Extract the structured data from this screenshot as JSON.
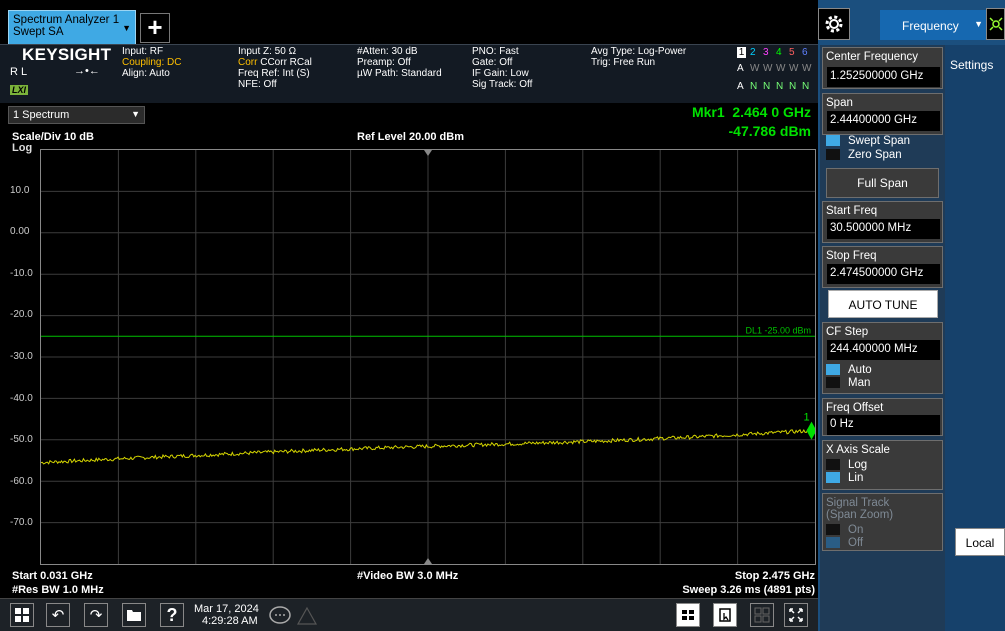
{
  "tab": {
    "title_line1": "Spectrum Analyzer 1",
    "title_line2": "Swept SA",
    "add": "+"
  },
  "info": {
    "brand": "KEYSIGHT",
    "rl": "R L",
    "lxi": "LXI",
    "col1": [
      "Input: RF",
      "Coupling: DC",
      "Align: Auto"
    ],
    "col2": [
      "Input Z: 50 Ω",
      "Corr CCorr RCal",
      "Freq Ref: Int (S)",
      "NFE: Off"
    ],
    "col3": [
      "#Atten: 30 dB",
      "Preamp: Off",
      "µW Path: Standard"
    ],
    "col4": [
      "PNO: Fast",
      "Gate: Off",
      "IF Gain: Low",
      "Sig Track: Off"
    ],
    "col5": [
      "Avg Type: Log-Power",
      "Trig: Free Run"
    ],
    "trace_nums": [
      "1",
      "2",
      "3",
      "4",
      "5",
      "6"
    ],
    "trace_types": [
      "A",
      "W",
      "W",
      "W",
      "W",
      "W"
    ],
    "trace_dets": [
      "A",
      "N",
      "N",
      "N",
      "N",
      "N"
    ],
    "trace_colors": [
      "#ffff00",
      "#00d0ff",
      "#ff40ff",
      "#00ff00",
      "#ff6060",
      "#6080ff"
    ]
  },
  "spectrum": {
    "selector": "1 Spectrum",
    "marker_freq": "Mkr1  2.464 0 GHz",
    "marker_amp": "-47.786 dBm",
    "scale_div": "Scale/Div 10 dB",
    "log": "Log",
    "ref_level": "Ref Level 20.00 dBm",
    "y_labels": [
      "10.0",
      "0.00",
      "-10.0",
      "-20.0",
      "-30.0",
      "-40.0",
      "-50.0",
      "-60.0",
      "-70.0"
    ],
    "display_line": "DL1 -25.00 dBm",
    "marker_num": "1",
    "start": "Start 0.031 GHz",
    "video_bw": "#Video BW 3.0 MHz",
    "stop": "Stop 2.475 GHz",
    "res_bw": "#Res BW 1.0 MHz",
    "sweep": "Sweep 3.26 ms (4891 pts)"
  },
  "taskbar": {
    "date": "Mar 17, 2024",
    "time": "4:29:28 AM"
  },
  "panel": {
    "menu": "Frequency",
    "settings": "Settings",
    "center_label": "Center Frequency",
    "center_value": "1.252500000 GHz",
    "span_label": "Span",
    "span_value": "2.44400000 GHz",
    "swept_span": "Swept Span",
    "zero_span": "Zero Span",
    "full_span": "Full Span",
    "start_label": "Start Freq",
    "start_value": "30.500000 MHz",
    "stop_label": "Stop Freq",
    "stop_value": "2.474500000 GHz",
    "auto_tune": "AUTO TUNE",
    "cf_step_label": "CF Step",
    "cf_step_value": "244.400000 MHz",
    "auto": "Auto",
    "man": "Man",
    "offset_label": "Freq Offset",
    "offset_value": "0 Hz",
    "xscale_label": "X Axis Scale",
    "log": "Log",
    "lin": "Lin",
    "sigtrack_label": "Signal Track",
    "sigtrack_sub": "(Span Zoom)",
    "on": "On",
    "off": "Off",
    "local": "Local"
  },
  "chart_data": {
    "type": "line",
    "x_unit": "GHz",
    "y_unit": "dBm",
    "xlim": [
      0.031,
      2.475
    ],
    "ylim": [
      -80,
      20
    ],
    "display_line": -25.0,
    "marker": {
      "x": 2.464,
      "y": -47.786
    },
    "series": [
      {
        "x": [
          0.031,
          0.3,
          0.6,
          0.9,
          1.2,
          1.5,
          1.8,
          2.1,
          2.464
        ],
        "y": [
          -55.5,
          -54.5,
          -53.5,
          -52.5,
          -51.7,
          -51.0,
          -50.3,
          -49.3,
          -47.8
        ]
      }
    ]
  },
  "colors": {
    "trace": "#d4d400",
    "display_line": "#00c000",
    "marker": "#00e000",
    "panel": "#1b4f7e"
  }
}
